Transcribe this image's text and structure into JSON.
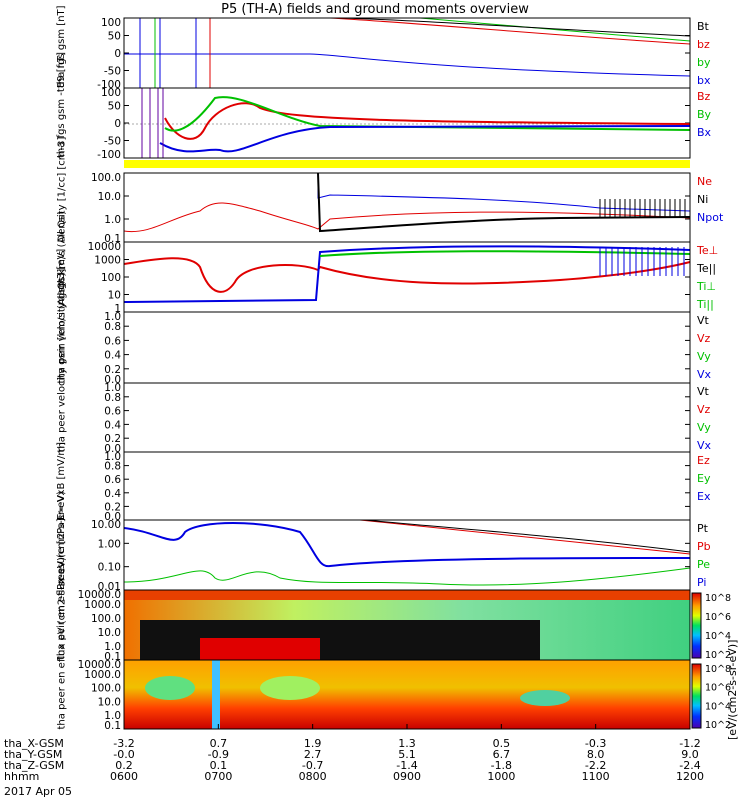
{
  "title": "P5 (TH-A) fields and ground moments overview",
  "date": "2017 Apr 05",
  "colorbar_label": "[eV/(cm2-s-sr-eV)]",
  "colorbar_ticks": [
    "10^8",
    "10^6",
    "10^4",
    "10^2"
  ],
  "footer": {
    "rows": [
      {
        "label": "tha_X-GSM",
        "values": [
          "-3.2",
          "0.7",
          "1.9",
          "1.3",
          "0.5",
          "-0.3",
          "-1.2"
        ]
      },
      {
        "label": "tha_Y-GSM",
        "values": [
          "-0.0",
          "-0.9",
          "2.7",
          "5.1",
          "6.7",
          "8.0",
          "9.0"
        ]
      },
      {
        "label": "tha_Z-GSM",
        "values": [
          "0.2",
          "0.1",
          "-0.7",
          "-1.4",
          "-1.8",
          "-2.2",
          "-2.4"
        ]
      },
      {
        "label": "hhmm",
        "values": [
          "0600",
          "0700",
          "0800",
          "0900",
          "1000",
          "1100",
          "1200"
        ]
      }
    ]
  },
  "chart_data": [
    {
      "type": "line",
      "panel": "fgs_gsm",
      "ylabel": "tha fgs gsm [nT]",
      "ylim": [
        -100,
        100
      ],
      "yticks": [
        "100",
        "50",
        "0",
        "-50",
        "-100"
      ],
      "series": [
        {
          "name": "Bt",
          "color": "#000000"
        },
        {
          "name": "bz",
          "color": "#e00000"
        },
        {
          "name": "by",
          "color": "#00c000"
        },
        {
          "name": "bx",
          "color": "#0000e0"
        }
      ],
      "x": [
        "0600",
        "0700",
        "0800",
        "0900",
        "1000",
        "1100",
        "1200"
      ]
    },
    {
      "type": "line",
      "panel": "fgs_gsm_-t89",
      "ylabel": "tha fgs gsm -t89 [nT]",
      "ylim": [
        -120,
        120
      ],
      "yticks": [
        "100",
        "50",
        "0",
        "-50",
        "-100"
      ],
      "series": [
        {
          "name": "Bz",
          "color": "#e00000"
        },
        {
          "name": "By",
          "color": "#00c000"
        },
        {
          "name": "Bx",
          "color": "#0000e0"
        }
      ]
    },
    {
      "type": "line",
      "panel": "density",
      "ylabel": "Density [1/cc] [cm-3]",
      "yscale": "log",
      "ylim": [
        0.1,
        200
      ],
      "yticks": [
        "100.0",
        "10.0",
        "1.0",
        "0.1"
      ],
      "series": [
        {
          "name": "Ne",
          "color": "#e00000"
        },
        {
          "name": "Ni",
          "color": "#000000"
        },
        {
          "name": "Npot",
          "color": "#0000e0"
        }
      ]
    },
    {
      "type": "line",
      "panel": "temperature",
      "ylabel": "magt3 [eV]",
      "yscale": "log",
      "ylim": [
        1,
        10000
      ],
      "yticks": [
        "10000",
        "1000",
        "100",
        "10",
        "1"
      ],
      "series": [
        {
          "name": "Te⊥",
          "color": "#e00000"
        },
        {
          "name": "Te||",
          "color": "#000000"
        },
        {
          "name": "Ti⊥",
          "color": "#00c000"
        },
        {
          "name": "Ti||",
          "color": "#00c000"
        }
      ]
    },
    {
      "type": "line",
      "panel": "peir_velocity",
      "ylabel": "tha peir velocity gsm km/s (All Qs)",
      "ylim": [
        0,
        1
      ],
      "yticks": [
        "1.0",
        "0.8",
        "0.6",
        "0.4",
        "0.2",
        "0.0"
      ],
      "series": [
        {
          "name": "Vt",
          "color": "#000000"
        },
        {
          "name": "Vz",
          "color": "#e00000"
        },
        {
          "name": "Vy",
          "color": "#00c000"
        },
        {
          "name": "Vx",
          "color": "#0000e0"
        }
      ]
    },
    {
      "type": "line",
      "panel": "peer_velocity",
      "ylabel": "tha peer velocity gsm [km/s (All Qs)]",
      "ylim": [
        0,
        1
      ],
      "yticks": [
        "1.0",
        "0.8",
        "0.6",
        "0.4",
        "0.2",
        "0.0"
      ],
      "series": [
        {
          "name": "Vt",
          "color": "#000000"
        },
        {
          "name": "Vz",
          "color": "#e00000"
        },
        {
          "name": "Vy",
          "color": "#00c000"
        },
        {
          "name": "Vx",
          "color": "#0000e0"
        }
      ]
    },
    {
      "type": "line",
      "panel": "efield",
      "ylabel": "E=-VxB [mV/m]",
      "ylim": [
        0,
        1
      ],
      "yticks": [
        "1.0",
        "0.8",
        "0.6",
        "0.4",
        "0.2",
        "0.0"
      ],
      "series": [
        {
          "name": "Ez",
          "color": "#e00000"
        },
        {
          "name": "Ey",
          "color": "#00c000"
        },
        {
          "name": "Ex",
          "color": "#0000e0"
        }
      ]
    },
    {
      "type": "line",
      "panel": "pressure",
      "ylabel": "Pressure [nPa]",
      "yscale": "log",
      "ylim": [
        0.01,
        30
      ],
      "yticks": [
        "10.00",
        "1.00",
        "0.10",
        "0.01"
      ],
      "series": [
        {
          "name": "Pt",
          "color": "#000000"
        },
        {
          "name": "Pb",
          "color": "#e00000"
        },
        {
          "name": "Pe",
          "color": "#00c000"
        },
        {
          "name": "Pi",
          "color": "#0000e0"
        }
      ]
    },
    {
      "type": "heatmap",
      "panel": "peir_eflux",
      "ylabel": "tha peir en eflux eV (cm2-s-sr-eV)",
      "yscale": "log",
      "yticks": [
        "10000.0",
        "1000.0",
        "100.0",
        "10.0",
        "1.0",
        "0.1"
      ]
    },
    {
      "type": "heatmap",
      "panel": "peer_eflux",
      "ylabel": "tha peer en eflux eV (cm2-s-sr-eV)",
      "yscale": "log",
      "yticks": [
        "10000.0",
        "1000.0",
        "100.0",
        "10.0",
        "1.0",
        "0.1"
      ]
    }
  ]
}
